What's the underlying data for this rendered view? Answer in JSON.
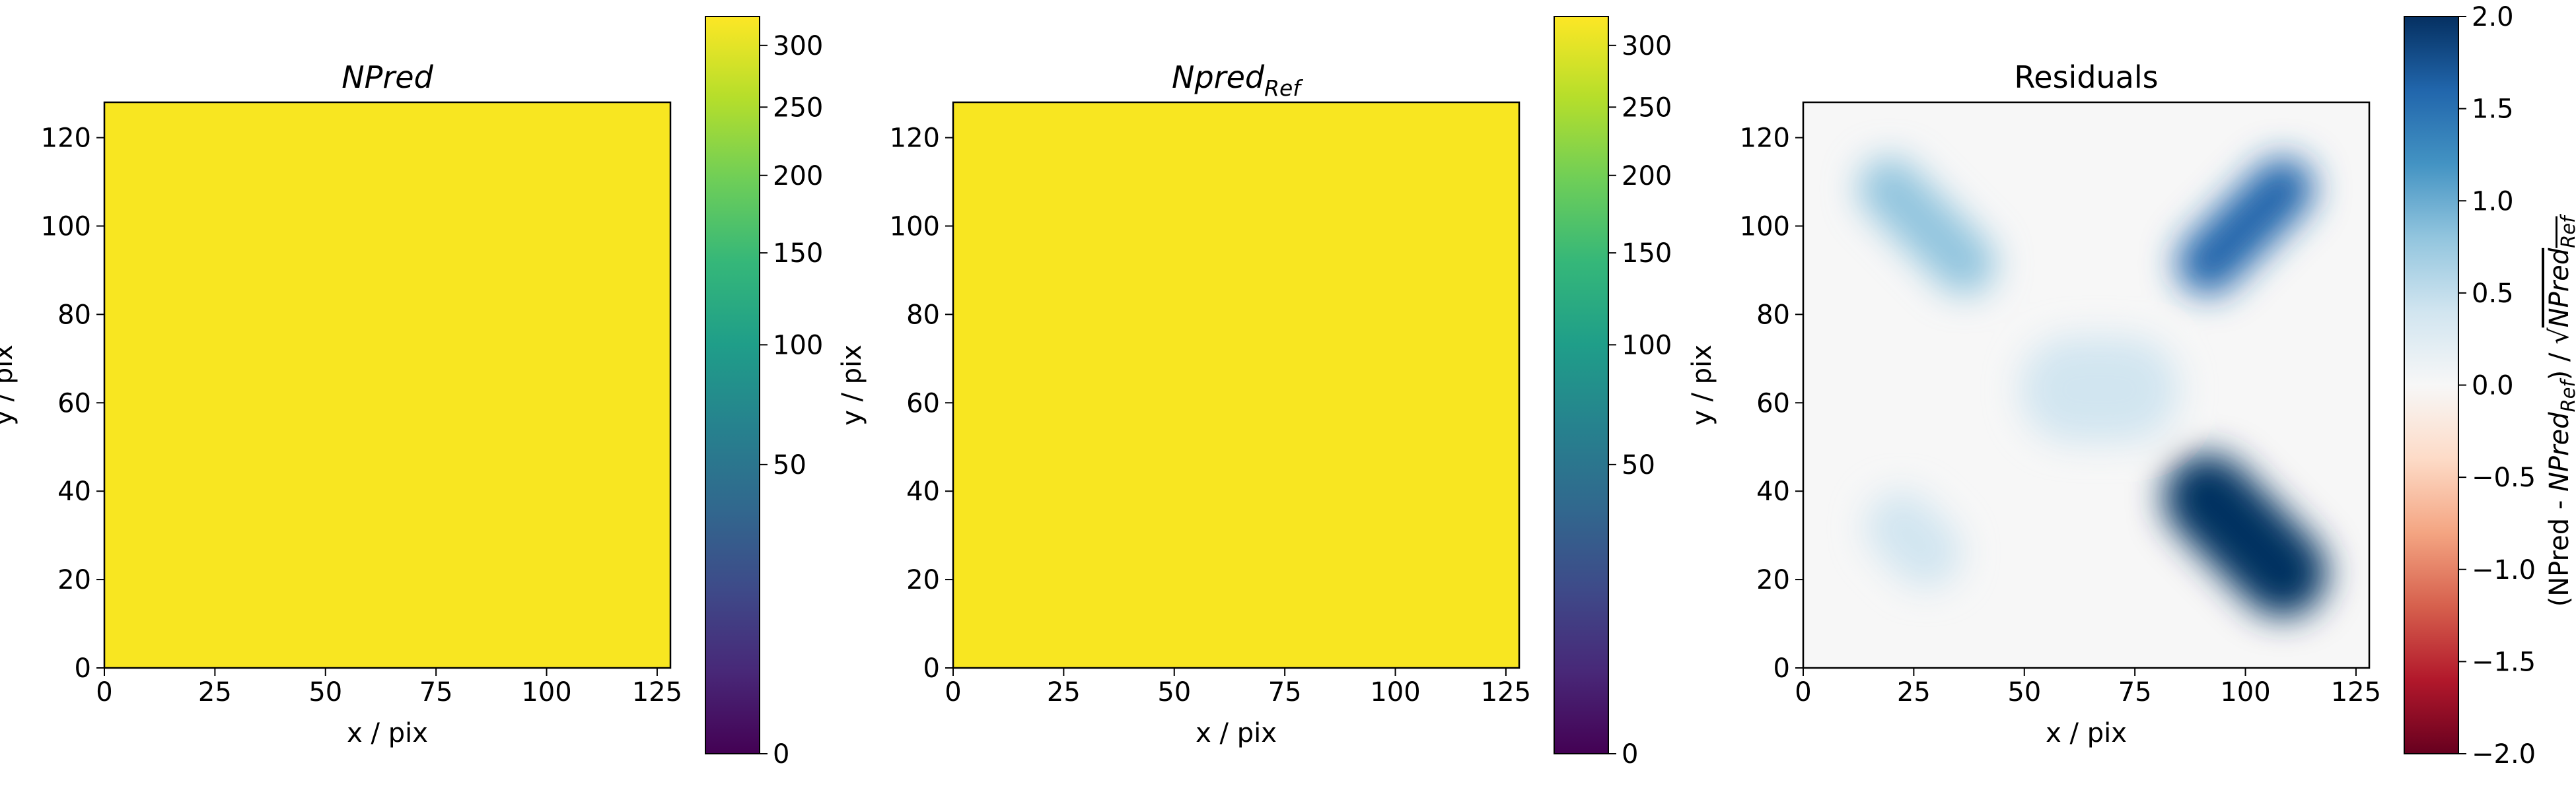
{
  "figure": {
    "background": "#ffffff"
  },
  "chart_data": [
    {
      "type": "heatmap",
      "title": "NPred",
      "title_style": "italic",
      "xlabel": "x / pix",
      "ylabel": "y / pix",
      "xlim": [
        0,
        128
      ],
      "ylim": [
        0,
        128
      ],
      "xticks": [
        0,
        25,
        50,
        75,
        100,
        125
      ],
      "yticks": [
        0,
        20,
        40,
        60,
        80,
        100,
        120
      ],
      "fill_value": 325,
      "fill_color": "#f8e621",
      "colorbar": {
        "colormap": "viridis",
        "scale": "sqrt",
        "range": [
          0,
          325
        ],
        "ticks": [
          0,
          50,
          100,
          150,
          200,
          250,
          300
        ],
        "label": ""
      }
    },
    {
      "type": "heatmap",
      "title": "Npred",
      "title_subscript": "Ref",
      "title_style": "italic",
      "xlabel": "x / pix",
      "ylabel": "y / pix",
      "xlim": [
        0,
        128
      ],
      "ylim": [
        0,
        128
      ],
      "xticks": [
        0,
        25,
        50,
        75,
        100,
        125
      ],
      "yticks": [
        0,
        20,
        40,
        60,
        80,
        100,
        120
      ],
      "fill_value": 325,
      "fill_color": "#f8e621",
      "colorbar": {
        "colormap": "viridis",
        "scale": "sqrt",
        "range": [
          0,
          325
        ],
        "ticks": [
          0,
          50,
          100,
          150,
          200,
          250,
          300
        ],
        "label": ""
      }
    },
    {
      "type": "heatmap",
      "title": "Residuals",
      "title_style": "normal",
      "xlabel": "x / pix",
      "ylabel": "y / pix",
      "xlim": [
        0,
        128
      ],
      "ylim": [
        0,
        128
      ],
      "xticks": [
        0,
        25,
        50,
        75,
        100,
        125
      ],
      "yticks": [
        0,
        20,
        40,
        60,
        80,
        100,
        120
      ],
      "background_value": 0.0,
      "blobs": [
        {
          "x": 28,
          "y": 100,
          "angle_deg": -45,
          "half_length": 12,
          "width": 7,
          "value": 0.7
        },
        {
          "x": 100,
          "y": 100,
          "angle_deg": 45,
          "half_length": 12,
          "width": 7,
          "value": 1.5
        },
        {
          "x": 100,
          "y": 30,
          "angle_deg": -45,
          "half_length": 12,
          "width": 10,
          "value": 2.0
        },
        {
          "x": 67,
          "y": 63,
          "angle_deg": 0,
          "half_length": 6,
          "width": 12,
          "value": 0.3
        },
        {
          "x": 25,
          "y": 29,
          "angle_deg": -45,
          "half_length": 4,
          "width": 8,
          "value": 0.2
        }
      ],
      "colorbar": {
        "colormap": "RdBu",
        "scale": "linear",
        "range": [
          -2.0,
          2.0
        ],
        "ticks": [
          -2.0,
          -1.5,
          -1.0,
          -0.5,
          0.0,
          0.5,
          1.0,
          1.5,
          2.0
        ],
        "tick_labels": [
          "−2.0",
          "−1.5",
          "−1.0",
          "−0.5",
          "0.0",
          "0.5",
          "1.0",
          "1.5",
          "2.0"
        ],
        "label_parts": [
          {
            "text": "(NPred - ",
            "style": "normal"
          },
          {
            "text": "NPred",
            "style": "italic"
          },
          {
            "text": "Ref",
            "style": "italic-sub"
          },
          {
            "text": ") / ",
            "style": "normal"
          },
          {
            "text": "√",
            "style": "normal"
          },
          {
            "text": "NPred",
            "style": "italic-over"
          },
          {
            "text": "Ref",
            "style": "italic-sub-over"
          }
        ]
      }
    }
  ]
}
